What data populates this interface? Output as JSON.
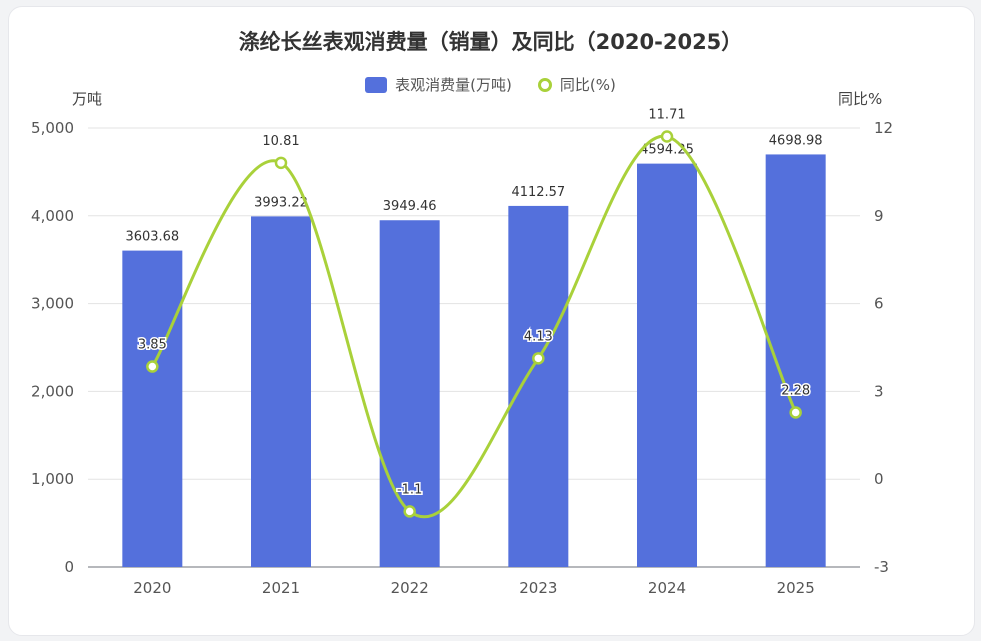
{
  "title": "涤纶长丝表观消费量（销量）及同比（2020-2025）",
  "legend": {
    "bar_label": "表观消费量(万吨)",
    "line_label": "同比(%)"
  },
  "units": {
    "left": "万吨",
    "right": "同比%"
  },
  "colors": {
    "bar": "#5470dc",
    "line": "#a9d13a",
    "grid": "#e3e3e3"
  },
  "chart_data": {
    "type": "bar",
    "categories": [
      "2020",
      "2021",
      "2022",
      "2023",
      "2024",
      "2025"
    ],
    "series": [
      {
        "name": "表观消费量(万吨)",
        "type": "bar",
        "axis": "left",
        "values": [
          3603.68,
          3993.22,
          3949.46,
          4112.57,
          4594.25,
          4698.98
        ],
        "labels": [
          "3603.68",
          "3993.22",
          "3949.46",
          "4112.57",
          "4594.25",
          "4698.98"
        ]
      },
      {
        "name": "同比(%)",
        "type": "line",
        "smooth": true,
        "axis": "right",
        "values": [
          3.85,
          10.81,
          -1.1,
          4.13,
          11.71,
          2.28
        ],
        "labels": [
          "3.85",
          "10.81",
          "-1.1",
          "4.13",
          "11.71",
          "2.28"
        ]
      }
    ],
    "y_left": {
      "range": [
        0,
        5000
      ],
      "ticks": [
        "0",
        "1,000",
        "2,000",
        "3,000",
        "4,000",
        "5,000"
      ]
    },
    "y_right": {
      "range": [
        -3,
        12
      ],
      "ticks": [
        "-3",
        "0",
        "3",
        "6",
        "9",
        "12"
      ]
    },
    "grid": true,
    "legend_position": "top-center"
  }
}
